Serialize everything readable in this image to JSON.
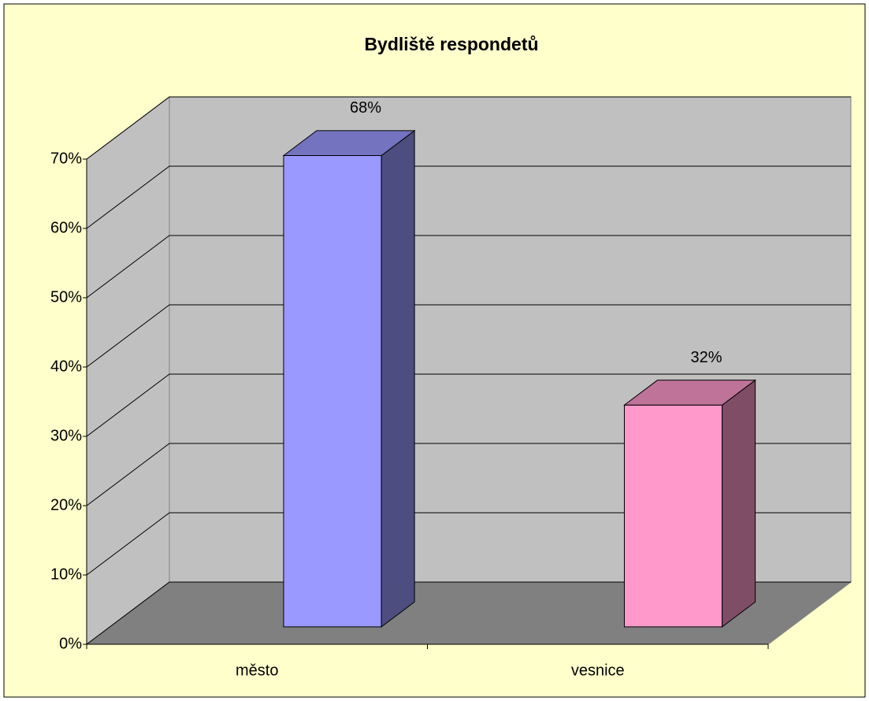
{
  "chart_data": {
    "type": "bar3d",
    "title": "Bydliště respondetů",
    "categories": [
      "město",
      "vesnice"
    ],
    "values": [
      68,
      32
    ],
    "value_labels": [
      "68%",
      "32%"
    ],
    "colors": [
      "#9999ff",
      "#ff99cc"
    ],
    "ylim": [
      0,
      70
    ],
    "yticks": [
      {
        "value": 0,
        "label": "0%"
      },
      {
        "value": 10,
        "label": "10%"
      },
      {
        "value": 20,
        "label": "20%"
      },
      {
        "value": 30,
        "label": "30%"
      },
      {
        "value": 40,
        "label": "40%"
      },
      {
        "value": 50,
        "label": "50%"
      },
      {
        "value": 60,
        "label": "60%"
      },
      {
        "value": 70,
        "label": "70%"
      }
    ],
    "grid": true
  }
}
